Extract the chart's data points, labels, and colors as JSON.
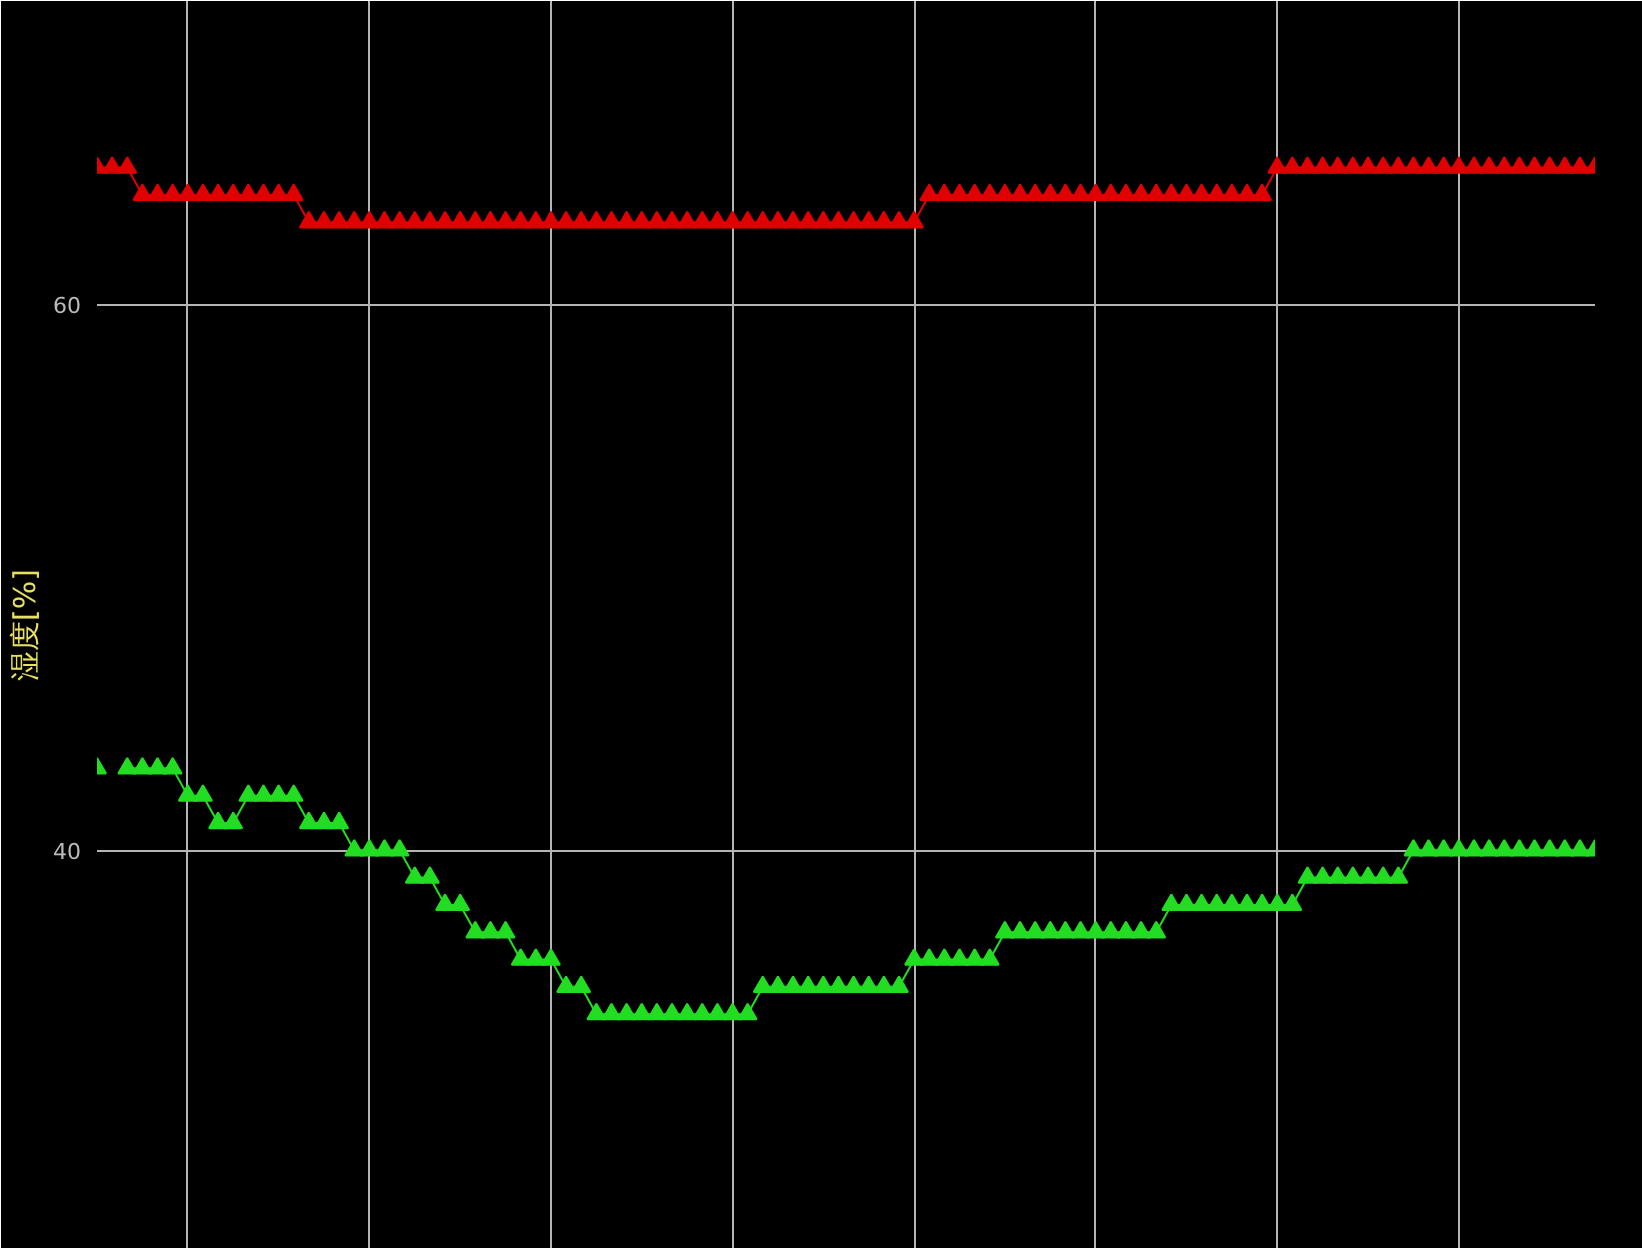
{
  "chart_data": {
    "type": "line",
    "ylabel": "湿度[%]",
    "categories": [
      null,
      null,
      null,
      null,
      null,
      null,
      null,
      null,
      null,
      null,
      null,
      null,
      null,
      null,
      null,
      null,
      null,
      null,
      null,
      null,
      null,
      null,
      null,
      null,
      null,
      null,
      null,
      null,
      null,
      null,
      null,
      null,
      null,
      null,
      null,
      null,
      null,
      null,
      null,
      null,
      null,
      null,
      null,
      null,
      null,
      null,
      null,
      null,
      null,
      null,
      null,
      null,
      null,
      null,
      null,
      null,
      null,
      null,
      null,
      null,
      null,
      null,
      null,
      null,
      null,
      null,
      null,
      null,
      null,
      null,
      null,
      null,
      null,
      null,
      null,
      null,
      null,
      null,
      null,
      null,
      null,
      null,
      null,
      null,
      null,
      null,
      null,
      null,
      null,
      null,
      null,
      null,
      null,
      null,
      null,
      null,
      null,
      null,
      null,
      null
    ],
    "series": [
      {
        "color": "#e00000",
        "values": [
          65,
          65,
          65,
          64,
          64,
          64,
          64,
          64,
          64,
          64,
          64,
          64,
          64,
          64,
          63,
          63,
          63,
          63,
          63,
          63,
          63,
          63,
          63,
          63,
          63,
          63,
          63,
          63,
          63,
          63,
          63,
          63,
          63,
          63,
          63,
          63,
          63,
          63,
          63,
          63,
          63,
          63,
          63,
          63,
          63,
          63,
          63,
          63,
          63,
          63,
          63,
          63,
          63,
          63,
          63,
          64,
          64,
          64,
          64,
          64,
          64,
          64,
          64,
          64,
          64,
          64,
          64,
          64,
          64,
          64,
          64,
          64,
          64,
          64,
          64,
          64,
          64,
          64,
          65,
          65,
          65,
          65,
          65,
          65,
          65,
          65,
          65,
          65,
          65,
          65,
          65,
          65,
          65,
          65,
          65,
          65,
          65,
          65,
          65,
          65
        ]
      },
      {
        "color": "#22dd22",
        "values": [
          43,
          null,
          43,
          43,
          43,
          43,
          42,
          42,
          41,
          41,
          42,
          42,
          42,
          42,
          41,
          41,
          41,
          40,
          40,
          40,
          40,
          39,
          39,
          38,
          38,
          37,
          37,
          37,
          36,
          36,
          36,
          35,
          35,
          34,
          34,
          34,
          34,
          34,
          34,
          34,
          34,
          34,
          34,
          34,
          35,
          35,
          35,
          35,
          35,
          35,
          35,
          35,
          35,
          35,
          36,
          36,
          36,
          36,
          36,
          36,
          37,
          37,
          37,
          37,
          37,
          37,
          37,
          37,
          37,
          37,
          37,
          38,
          38,
          38,
          38,
          38,
          38,
          38,
          38,
          38,
          39,
          39,
          39,
          39,
          39,
          39,
          39,
          40,
          40,
          40,
          40,
          40,
          40,
          40,
          40,
          40,
          40,
          40,
          40,
          40
        ]
      }
    ],
    "ylim": [
      25.4,
      71.1
    ],
    "yticks": [
      40,
      60
    ],
    "tick_labels": "y",
    "grid": true,
    "marker": "triangle",
    "line_style": "solid"
  }
}
